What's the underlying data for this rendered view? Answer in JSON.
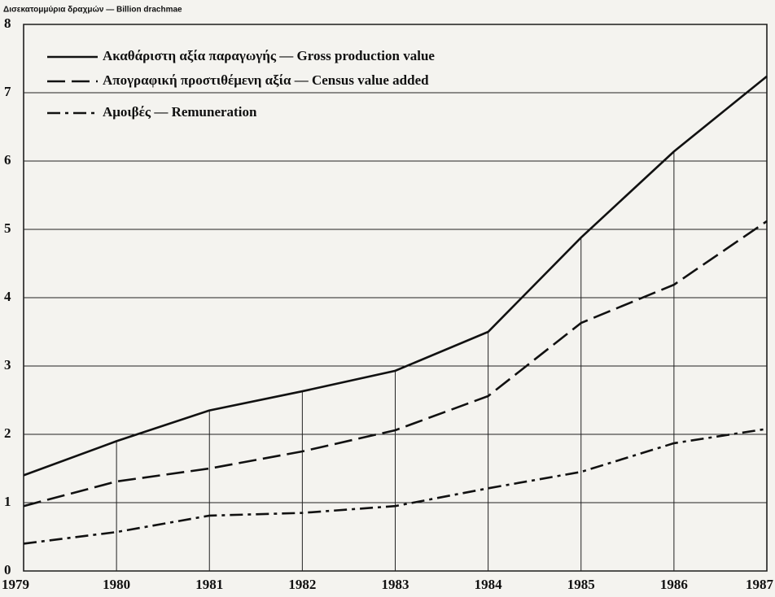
{
  "chart_data": {
    "type": "line",
    "y_label": "Δισεκατομμύρια δραχμών — Billion drachmae",
    "categories": [
      "1979",
      "1980",
      "1981",
      "1982",
      "1983",
      "1984",
      "1985",
      "1986",
      "1987"
    ],
    "series": [
      {
        "name": "Ακαθάριστη αξία παραγωγής — Gross production value",
        "color": "#111111",
        "dash": "solid",
        "values": [
          1.4,
          1.9,
          2.35,
          2.63,
          2.93,
          3.5,
          4.88,
          6.14,
          7.24
        ]
      },
      {
        "name": "Απογραφική προστιθέμενη αξία — Census value added",
        "color": "#111111",
        "dash": "dashed",
        "values": [
          0.95,
          1.31,
          1.5,
          1.75,
          2.06,
          2.56,
          3.63,
          4.19,
          5.12
        ]
      },
      {
        "name": "Αμοιβές — Remuneration",
        "color": "#111111",
        "dash": "dashdot",
        "values": [
          0.4,
          0.57,
          0.81,
          0.85,
          0.95,
          1.21,
          1.45,
          1.87,
          2.08
        ]
      }
    ],
    "ylim": [
      0,
      8
    ],
    "yticks": [
      0,
      1,
      2,
      3,
      4,
      5,
      6,
      7,
      8
    ],
    "grid": true,
    "legend": "upper left"
  }
}
